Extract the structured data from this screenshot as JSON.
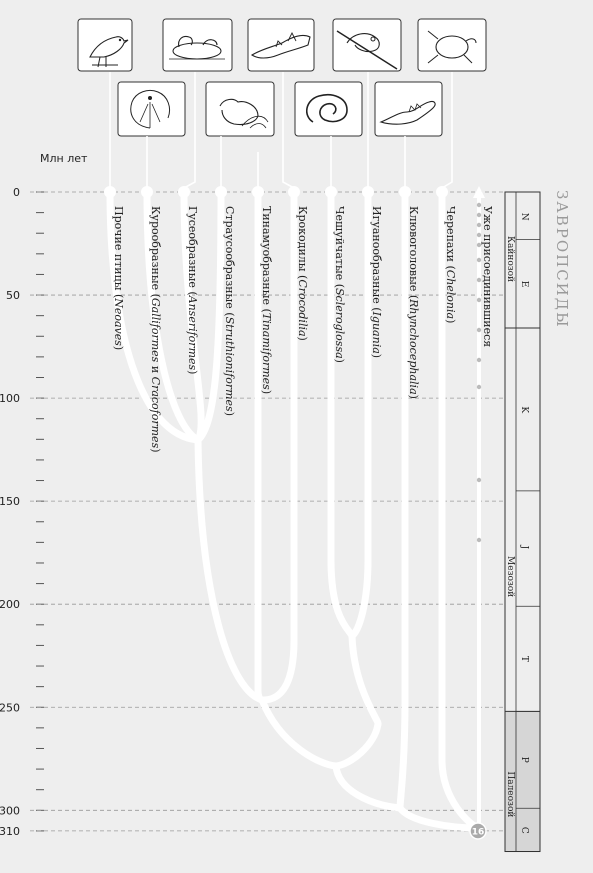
{
  "axis": {
    "title": "Млн лет",
    "ticks": [
      {
        "label": "0",
        "value": 0
      },
      {
        "label": "50",
        "value": 50
      },
      {
        "label": "100",
        "value": 100
      },
      {
        "label": "150",
        "value": 150
      },
      {
        "label": "200",
        "value": 200
      },
      {
        "label": "250",
        "value": 250
      },
      {
        "label": "300",
        "value": 300
      },
      {
        "label": "310",
        "value": 310
      }
    ]
  },
  "group_title": "ЗАВРОПСИДЫ",
  "taxa": [
    {
      "id": "neoaves",
      "label_plain": "Прочие птицы (",
      "label_italic": "Neoaves",
      "label_end": ")",
      "icon": "songbird-icon"
    },
    {
      "id": "galliformes",
      "label_plain": "Курообразные (",
      "label_italic": "Galliformes",
      "label_mid": " и ",
      "label_italic2": "Cracoformes",
      "label_end": ")",
      "icon": "peacock-icon"
    },
    {
      "id": "anseriformes",
      "label_plain": "Гусеобразные (",
      "label_italic": "Anseriformes",
      "label_end": ")",
      "icon": "duck-icon"
    },
    {
      "id": "struthioniformes",
      "label_plain": "Страусообразные (",
      "label_italic": "Struthioniformes",
      "label_end": ")",
      "icon": "tinamou-icon"
    },
    {
      "id": "tinamiformes",
      "label_plain": "Тинамуобразные (",
      "label_italic": "Tinamiformes",
      "label_end": ")",
      "icon": "ostrich-icon"
    },
    {
      "id": "crocodilia",
      "label_plain": "Крокодилы (",
      "label_italic": "Crocodilia",
      "label_end": ")",
      "icon": "crocodile-icon"
    },
    {
      "id": "scleroglossa",
      "label_plain": "Чешуйчатые (",
      "label_italic": "Scleroglossa",
      "label_end": ")",
      "icon": "snake-icon"
    },
    {
      "id": "iguania",
      "label_plain": "Игуанообразные (",
      "label_italic": "Iguania",
      "label_end": ")",
      "icon": "chameleon-icon"
    },
    {
      "id": "rhynchocephalia",
      "label_plain": "Клювоголовые (",
      "label_italic": "Rhynchocephalia",
      "label_end": ")",
      "icon": "tuatara-icon"
    },
    {
      "id": "chelonia",
      "label_plain": "Черепахи (",
      "label_italic": "Chelonia",
      "label_end": ")",
      "icon": "turtle-icon"
    },
    {
      "id": "already_joined",
      "label_plain": "Уже присоединившиеся",
      "icon": ""
    }
  ],
  "node_badge": "16",
  "timescale": {
    "eras": [
      {
        "label": "Кайнозой",
        "from": 0,
        "to": 66
      },
      {
        "label": "Мезозой",
        "from": 66,
        "to": 252
      },
      {
        "label": "Палеозой",
        "from": 252,
        "to": 320
      }
    ],
    "periods": [
      {
        "label": "N",
        "from": 0,
        "to": 23
      },
      {
        "label": "E",
        "from": 23,
        "to": 66
      },
      {
        "label": "K",
        "from": 66,
        "to": 145
      },
      {
        "label": "J",
        "from": 145,
        "to": 201
      },
      {
        "label": "T",
        "from": 201,
        "to": 252
      },
      {
        "label": "P",
        "from": 252,
        "to": 299
      },
      {
        "label": "C",
        "from": 299,
        "to": 320
      }
    ]
  }
}
